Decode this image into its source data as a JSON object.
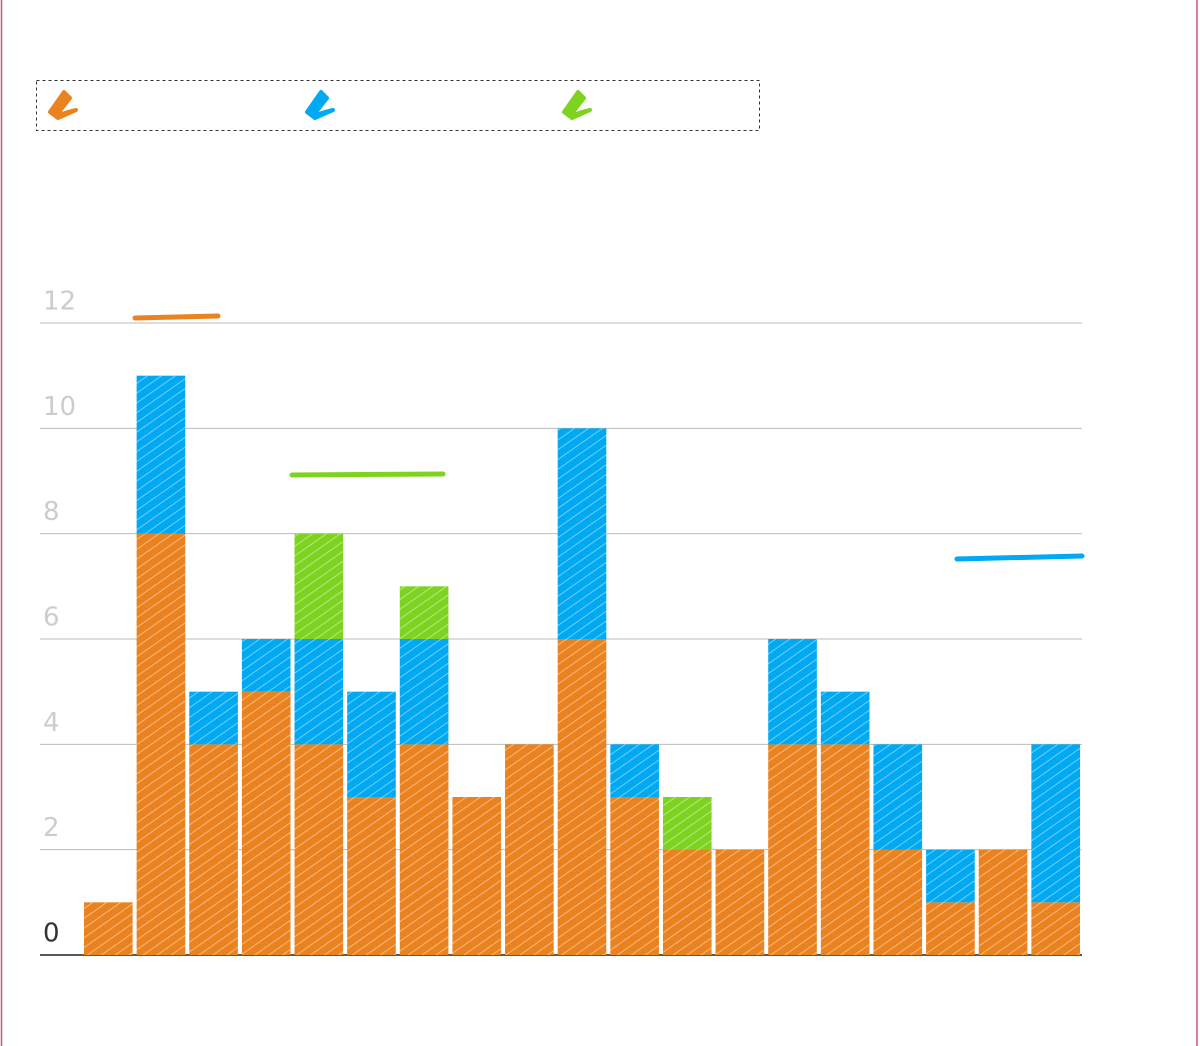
{
  "chart_data": {
    "type": "stacked_bar",
    "categories": [
      null,
      null,
      null,
      null,
      null,
      null,
      null,
      null,
      null,
      null,
      null,
      null,
      null,
      null,
      null,
      null,
      null,
      null,
      null
    ],
    "series": [
      {
        "color": "#ea8220",
        "values": [
          1,
          8,
          4,
          5,
          4,
          3,
          4,
          3,
          4,
          6,
          3,
          2,
          2,
          4,
          4,
          2,
          1,
          2,
          1
        ]
      },
      {
        "color": "#00a9f1",
        "values": [
          0,
          3,
          1,
          1,
          2,
          2,
          2,
          0,
          0,
          4,
          1,
          0,
          0,
          2,
          1,
          2,
          1,
          0,
          3
        ]
      },
      {
        "color": "#7ed321",
        "values": [
          0,
          0,
          0,
          0,
          2,
          0,
          1,
          0,
          0,
          0,
          0,
          1,
          0,
          0,
          0,
          0,
          0,
          0,
          0
        ]
      }
    ],
    "ylim": [
      0,
      12
    ],
    "yticks": [
      0,
      2,
      4,
      6,
      8,
      10,
      12
    ],
    "grid": true
  }
}
